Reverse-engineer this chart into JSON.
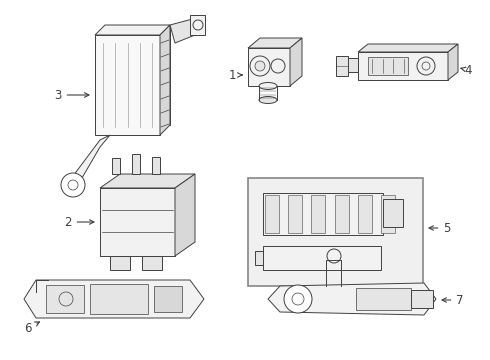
{
  "background_color": "#ffffff",
  "line_color": "#404040",
  "fig_width": 4.9,
  "fig_height": 3.6,
  "dpi": 100,
  "label_fontsize": 8.5
}
